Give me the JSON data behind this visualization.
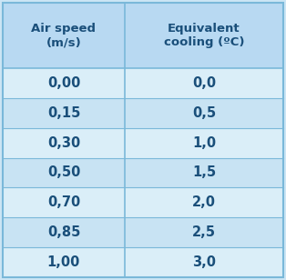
{
  "col1_header": "Air speed\n(m/s)",
  "col2_header": "Equivalent\ncooling (ºC)",
  "rows": [
    [
      "0,00",
      "0,0"
    ],
    [
      "0,15",
      "0,5"
    ],
    [
      "0,30",
      "1,0"
    ],
    [
      "0,50",
      "1,5"
    ],
    [
      "0,70",
      "2,0"
    ],
    [
      "0,85",
      "2,5"
    ],
    [
      "1,00",
      "3,0"
    ]
  ],
  "bg_color": "#cce5f5",
  "header_bg": "#b8d9f2",
  "row_bg_even": "#daeef8",
  "row_bg_odd": "#c8e3f3",
  "border_color": "#7ab8d9",
  "text_color": "#1a4f7a",
  "outer_border_color": "#7ab8d9",
  "header_fontsize": 9.5,
  "cell_fontsize": 10.5,
  "col_split": 0.435
}
